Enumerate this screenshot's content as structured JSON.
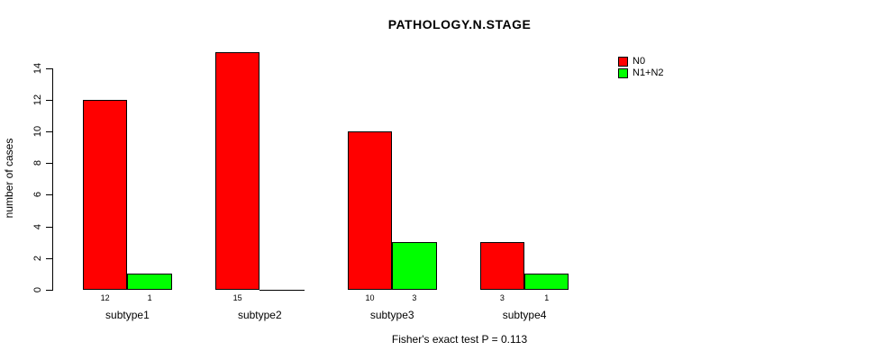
{
  "chart_data": {
    "type": "bar",
    "title": "PATHOLOGY.N.STAGE",
    "subtitle": "Fisher's exact test P = 0.113",
    "ylabel": "number of cases",
    "xlabel": "",
    "categories": [
      "subtype1",
      "subtype2",
      "subtype3",
      "subtype4"
    ],
    "series": [
      {
        "name": "N0",
        "color": "#ff0000",
        "values": [
          12,
          15,
          10,
          3
        ]
      },
      {
        "name": "N1+N2",
        "color": "#00ff00",
        "values": [
          1,
          0,
          3,
          1
        ]
      }
    ],
    "bar_value_labels": [
      [
        "12",
        "1"
      ],
      [
        "15",
        ""
      ],
      [
        "10",
        "3"
      ],
      [
        "3",
        "1"
      ]
    ],
    "yticks": [
      "0",
      "2",
      "4",
      "6",
      "8",
      "10",
      "12",
      "14"
    ],
    "ylim": [
      0,
      14
    ],
    "grid": false,
    "legend_position": "top-right"
  }
}
